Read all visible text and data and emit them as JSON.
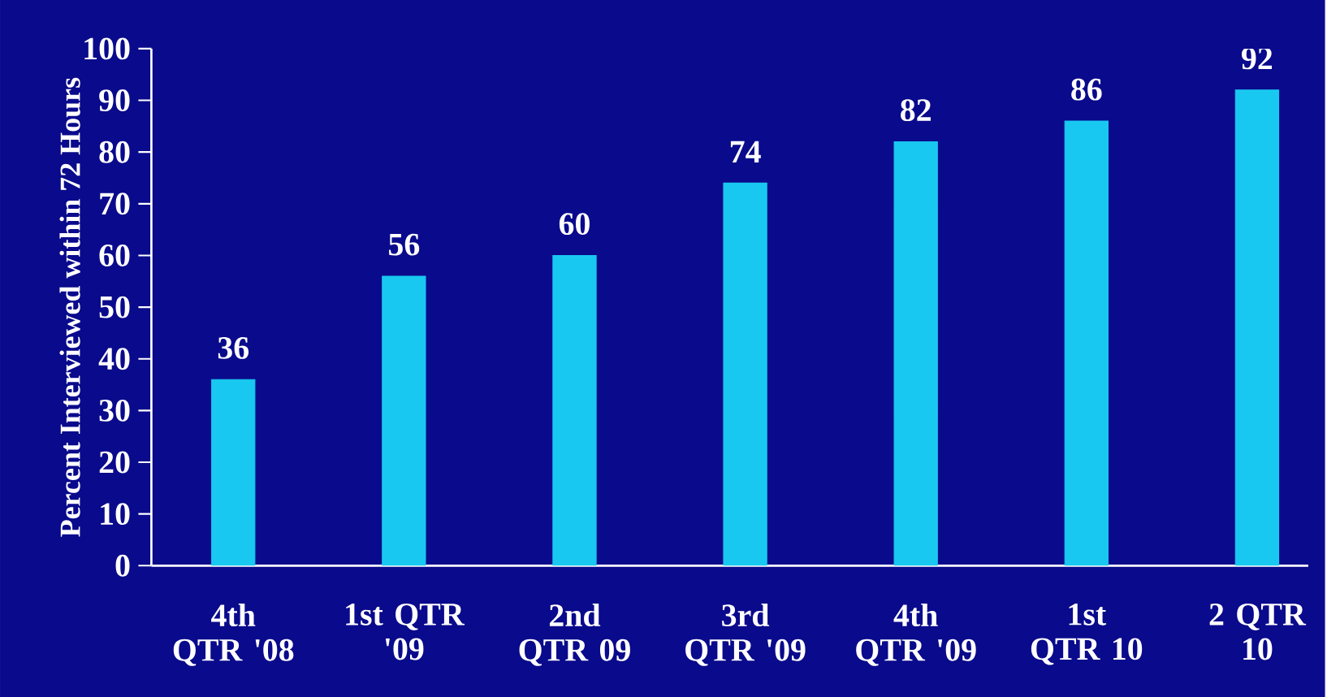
{
  "chart_data": {
    "type": "bar",
    "ylabel": "Percent Interviewed within 72 Hours",
    "categories": [
      "4th QTR '08",
      "1st QTR '09",
      "2nd QTR 09",
      "3rd QTR '09",
      "4th QTR '09",
      "1st QTR 10",
      "2 QTR 10"
    ],
    "values": [
      36,
      56,
      60,
      74,
      82,
      86,
      92
    ],
    "color": "#19c8f0",
    "ylim": [
      0,
      100
    ],
    "yticks": [
      0,
      10,
      20,
      30,
      40,
      50,
      60,
      70,
      80,
      90,
      100
    ],
    "data_labels": true
  }
}
